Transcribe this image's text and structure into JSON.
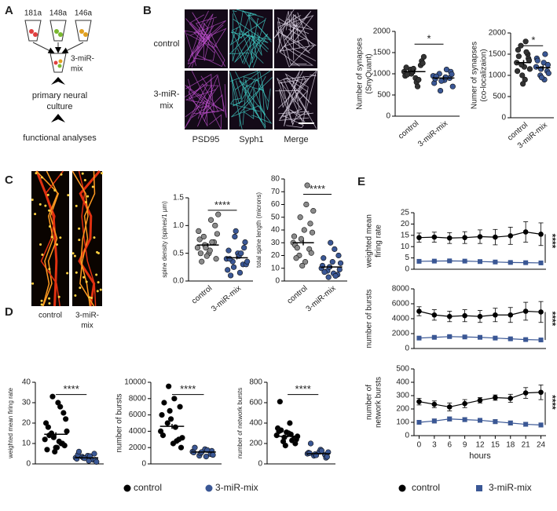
{
  "figure": {
    "panel_labels": [
      "A",
      "B",
      "C",
      "D",
      "E"
    ],
    "panel_a": {
      "tubes": [
        "181a",
        "148a",
        "146a"
      ],
      "mix": [
        "3-miR-",
        "mix"
      ],
      "steps": [
        [
          "primary neural",
          "culture"
        ],
        [
          "functional analyses"
        ]
      ]
    },
    "panel_b": {
      "rows": [
        [
          "control"
        ],
        [
          "3-miR-",
          "mix"
        ]
      ],
      "columns": [
        "PSD95",
        "Syph1",
        "Merge"
      ]
    },
    "panel_c": {
      "images": [
        [
          "control"
        ],
        [
          "3-miR-",
          "mix"
        ]
      ]
    },
    "panel_d_legend": [
      {
        "name": "control",
        "color": "#000000"
      },
      {
        "name": "3-miR-mix",
        "color": "#3a5795"
      }
    ]
  },
  "chart_data": [
    {
      "type": "strip",
      "ylabel": [
        "Number of  synapses",
        "(SnyQuant)"
      ],
      "categories": [
        "control",
        "3-miR-mix"
      ],
      "ylim": [
        0,
        2000
      ],
      "yticks": [
        0,
        500,
        1000,
        1500,
        2000
      ],
      "annotation": "*",
      "series": [
        {
          "color": "#333333",
          "values": [
            1050,
            1200,
            900,
            1100,
            950,
            1300,
            800,
            1000,
            1150,
            1250,
            700,
            1050,
            980,
            1400,
            860,
            1120
          ],
          "mean": 1050,
          "error": 50
        },
        {
          "color": "#3a5795",
          "values": [
            950,
            900,
            850,
            1000,
            780,
            1050,
            920,
            600,
            880,
            990,
            1100,
            830,
            940,
            700
          ],
          "mean": 900,
          "error": 40
        }
      ]
    },
    {
      "type": "strip",
      "ylabel": [
        "Numer of synapses",
        "(co-localizaion)"
      ],
      "categories": [
        "control",
        "3-miR-mix"
      ],
      "ylim": [
        0,
        2000
      ],
      "yticks": [
        0,
        500,
        1000,
        1500,
        2000
      ],
      "annotation": "*",
      "series": [
        {
          "color": "#333333",
          "values": [
            1300,
            1500,
            1200,
            1700,
            1100,
            1400,
            900,
            1250,
            1600,
            1350,
            1800,
            1000,
            1450,
            1150,
            1550,
            800
          ],
          "mean": 1300,
          "error": 60
        },
        {
          "color": "#3a5795",
          "values": [
            1200,
            1100,
            1300,
            1000,
            1400,
            1250,
            900,
            1150,
            1350,
            1050,
            1500,
            950
          ],
          "mean": 1180,
          "error": 50
        }
      ]
    },
    {
      "type": "strip",
      "ylabel": [
        "spine density (spines/1 µm)"
      ],
      "categories": [
        "control",
        "3-miR-mix"
      ],
      "ylim": [
        0,
        1.5
      ],
      "yticks": [
        {
          "value": 0,
          "label": "0.0"
        },
        0.5,
        {
          "value": 1,
          "label": "1.0"
        },
        1.5
      ],
      "annotation": "****",
      "series": [
        {
          "color": "#8a8a8a",
          "values": [
            0.6,
            0.7,
            0.5,
            0.8,
            0.9,
            1.0,
            0.55,
            0.65,
            0.75,
            0.4,
            1.1,
            0.6,
            0.5,
            0.85,
            0.7,
            0.45,
            0.35,
            1.2
          ],
          "mean": 0.65,
          "error": 0.03
        },
        {
          "color": "#3a5795",
          "values": [
            0.4,
            0.3,
            0.5,
            0.35,
            0.2,
            0.6,
            0.45,
            0.25,
            0.55,
            0.7,
            0.15,
            0.8,
            0.4,
            0.3,
            0.5,
            0.9,
            0.1,
            0.35
          ],
          "mean": 0.42,
          "error": 0.03
        }
      ]
    },
    {
      "type": "strip",
      "ylabel": [
        "total spine length (microns)"
      ],
      "categories": [
        "control",
        "3-miR-mix"
      ],
      "ylim": [
        0,
        80
      ],
      "yticks": [
        0,
        10,
        20,
        30,
        40,
        50,
        60,
        70,
        80
      ],
      "annotation": "****",
      "series": [
        {
          "color": "#8a8a8a",
          "values": [
            30,
            25,
            40,
            20,
            35,
            45,
            15,
            50,
            28,
            22,
            60,
            33,
            18,
            38,
            75,
            12,
            26,
            55
          ],
          "mean": 30,
          "error": 2
        },
        {
          "color": "#3a5795",
          "values": [
            10,
            5,
            15,
            8,
            12,
            20,
            6,
            3,
            18,
            9,
            25,
            11,
            7,
            14,
            4,
            30
          ],
          "mean": 11,
          "error": 1
        }
      ]
    },
    {
      "type": "strip",
      "ylabel": [
        "weighted mean firing rate"
      ],
      "ylim": [
        0,
        40
      ],
      "yticks": [
        0,
        10,
        20,
        30,
        40
      ],
      "annotation": "****",
      "series": [
        {
          "color": "#000000",
          "values": [
            12,
            10,
            8,
            15,
            20,
            25,
            30,
            33,
            7,
            9,
            11,
            13,
            18,
            22,
            28,
            6,
            14,
            16,
            10,
            8
          ],
          "mean": 14.5,
          "error": 1
        },
        {
          "color": "#3a5795",
          "values": [
            3,
            2,
            4,
            3.5,
            2.5,
            5,
            1.5,
            3,
            4.5,
            2,
            3.8,
            2.8,
            6,
            1
          ],
          "mean": 3,
          "error": 0.3
        }
      ]
    },
    {
      "type": "strip",
      "ylabel": [
        "number of bursts"
      ],
      "ylim": [
        0,
        10000
      ],
      "yticks": [
        0,
        2000,
        4000,
        6000,
        8000,
        10000
      ],
      "annotation": "****",
      "series": [
        {
          "color": "#000000",
          "values": [
            4000,
            3000,
            2500,
            5000,
            6000,
            7000,
            8000,
            9500,
            3500,
            2000,
            4500,
            6500,
            7500,
            3200,
            2800,
            5500
          ],
          "mean": 4600,
          "error": 300
        },
        {
          "color": "#3a5795",
          "values": [
            1500,
            1200,
            1800,
            1000,
            1400,
            1600,
            900,
            1300,
            2000,
            1100,
            1700,
            1450
          ],
          "mean": 1450,
          "error": 60
        }
      ]
    },
    {
      "type": "strip",
      "ylabel": [
        "number of network bursts"
      ],
      "ylim": [
        0,
        800
      ],
      "yticks": [
        0,
        200,
        400,
        600,
        800
      ],
      "annotation": "****",
      "series": [
        {
          "color": "#000000",
          "values": [
            280,
            250,
            300,
            220,
            350,
            200,
            400,
            260,
            320,
            240,
            290,
            180,
            610,
            270,
            230,
            310,
            330
          ],
          "mean": 270,
          "error": 10
        },
        {
          "color": "#3a5795",
          "values": [
            100,
            90,
            120,
            80,
            110,
            60,
            140,
            95,
            105,
            70,
            130,
            85,
            200,
            115
          ],
          "mean": 100,
          "error": 5
        }
      ]
    },
    {
      "type": "line",
      "ylabel": [
        "weighted mean",
        "firing rate"
      ],
      "x": [
        0,
        3,
        6,
        9,
        12,
        15,
        18,
        21,
        24
      ],
      "xlim": [
        -1,
        25
      ],
      "ylim": [
        0,
        25
      ],
      "yticks": [
        0,
        5,
        10,
        15,
        20,
        25
      ],
      "annotation": "****",
      "series": [
        {
          "color": "#000000",
          "marker": "circle",
          "values": [
            14,
            14.2,
            13.8,
            14,
            14.4,
            14.2,
            14.8,
            16.5,
            15.5
          ],
          "errors": [
            2,
            2.2,
            2.4,
            2.6,
            3,
            3.4,
            3.8,
            4.5,
            5
          ]
        },
        {
          "color": "#3a5795",
          "marker": "square",
          "values": [
            3.5,
            3.6,
            3.7,
            3.6,
            3.4,
            3.2,
            3,
            2.9,
            2.8
          ],
          "errors": [
            0.3,
            0.3,
            0.3,
            0.3,
            0.3,
            0.3,
            0.3,
            0.3,
            0.3
          ]
        }
      ]
    },
    {
      "type": "line",
      "ylabel": [
        "number of bursts"
      ],
      "x": [
        0,
        3,
        6,
        9,
        12,
        15,
        18,
        21,
        24
      ],
      "xlim": [
        -1,
        25
      ],
      "ylim": [
        0,
        8000
      ],
      "yticks": [
        0,
        2000,
        4000,
        6000,
        8000
      ],
      "annotation": "****",
      "series": [
        {
          "color": "#000000",
          "marker": "circle",
          "values": [
            5000,
            4500,
            4300,
            4400,
            4300,
            4500,
            4500,
            5000,
            4900
          ],
          "errors": [
            600,
            700,
            700,
            800,
            800,
            900,
            1000,
            1200,
            1400
          ]
        },
        {
          "color": "#3a5795",
          "marker": "square",
          "values": [
            1400,
            1500,
            1600,
            1550,
            1500,
            1400,
            1300,
            1200,
            1150
          ],
          "errors": [
            150,
            150,
            150,
            150,
            150,
            150,
            150,
            150,
            150
          ]
        }
      ]
    },
    {
      "type": "line",
      "ylabel": [
        "number of",
        "network bursts"
      ],
      "x": [
        0,
        3,
        6,
        9,
        12,
        15,
        18,
        21,
        24
      ],
      "xlim": [
        -1,
        25
      ],
      "ylim": [
        0,
        500
      ],
      "yticks": [
        0,
        100,
        200,
        300,
        400,
        500
      ],
      "xticks": [
        0,
        3,
        6,
        9,
        12,
        15,
        18,
        21,
        24
      ],
      "xlabel": "hours",
      "annotation": "****",
      "series": [
        {
          "name": "control",
          "color": "#000000",
          "marker": "circle",
          "values": [
            255,
            235,
            215,
            240,
            265,
            285,
            280,
            320,
            325
          ],
          "errors": [
            25,
            25,
            30,
            30,
            20,
            20,
            30,
            40,
            55
          ]
        },
        {
          "name": "3-miR-mix",
          "color": "#3a5795",
          "marker": "square",
          "values": [
            100,
            110,
            125,
            120,
            115,
            105,
            95,
            85,
            80
          ],
          "errors": [
            15,
            15,
            15,
            15,
            15,
            15,
            15,
            15,
            15
          ]
        }
      ]
    }
  ]
}
